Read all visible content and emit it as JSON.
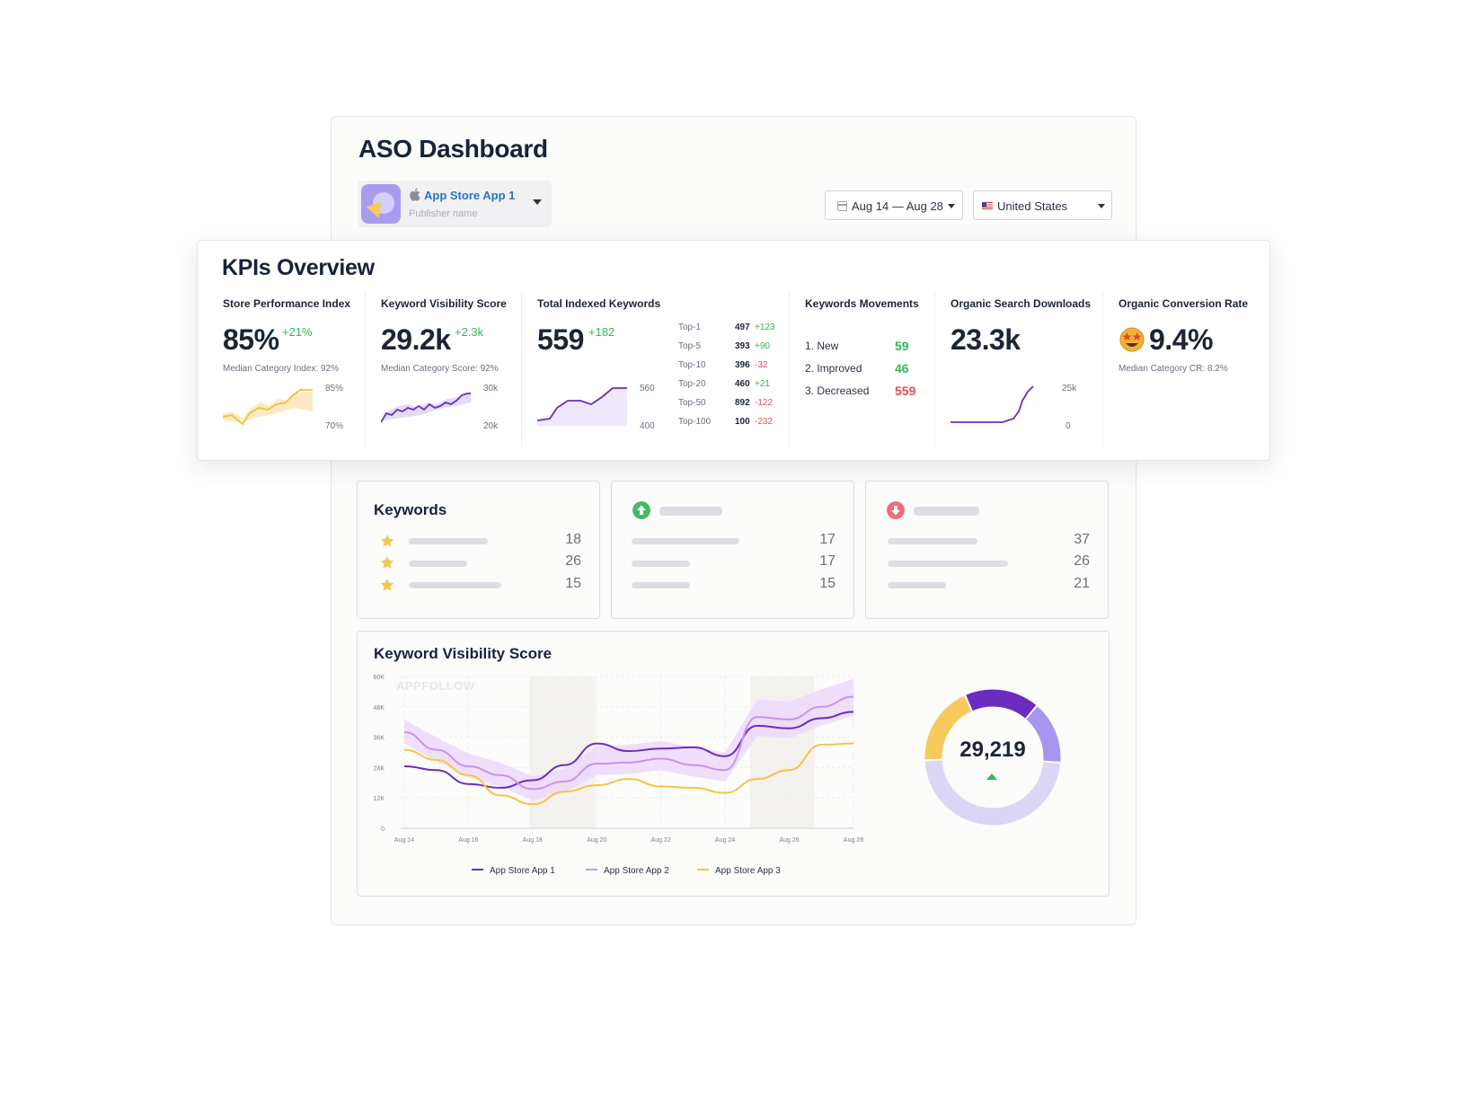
{
  "header": {
    "title": "ASO Dashboard",
    "app_name": "App Store App 1",
    "publisher": "Publisher name",
    "date_range": "Aug 14 — Aug 28",
    "country": "United States"
  },
  "kpis": {
    "title": "KPIs Overview",
    "store_performance": {
      "label": "Store Performance Index",
      "value": "85%",
      "delta": "+21%",
      "sub": "Median Category Index: 92%",
      "axis_top": "85%",
      "axis_bottom": "70%"
    },
    "keyword_visibility": {
      "label": "Keyword Visibility Score",
      "value": "29.2k",
      "delta": "+2.3k",
      "sub": "Median Category Score: 92%",
      "axis_top": "30k",
      "axis_bottom": "20k"
    },
    "indexed_keywords": {
      "label": "Total Indexed Keywords",
      "value": "559",
      "delta": "+182",
      "axis_top": "560",
      "axis_bottom": "400",
      "tiers": [
        {
          "name": "Top-1",
          "value": "497",
          "delta": "+123",
          "dir": "pos"
        },
        {
          "name": "Top-5",
          "value": "393",
          "delta": "+90",
          "dir": "pos"
        },
        {
          "name": "Top-10",
          "value": "396",
          "delta": "-32",
          "dir": "neg"
        },
        {
          "name": "Top-20",
          "value": "460",
          "delta": "+21",
          "dir": "pos"
        },
        {
          "name": "Top-50",
          "value": "892",
          "delta": "-122",
          "dir": "neg"
        },
        {
          "name": "Top-100",
          "value": "100",
          "delta": "-232",
          "dir": "neg"
        }
      ]
    },
    "movements": {
      "label": "Keywords Movements",
      "items": [
        {
          "label": "1.  New",
          "value": "59",
          "color": "#35b35a"
        },
        {
          "label": "2.  Improved",
          "value": "46",
          "color": "#35b35a"
        },
        {
          "label": "3.  Decreased",
          "value": "559",
          "color": "#e34c58"
        }
      ]
    },
    "organic_downloads": {
      "label": "Organic Search Downloads",
      "value": "23.3k",
      "axis_top": "25k",
      "axis_bottom": "0"
    },
    "conversion": {
      "label": "Organic Conversion Rate",
      "value": "9.4%",
      "sub": "Median Category CR: 8.2%",
      "icon": "star-struck-emoji-icon"
    }
  },
  "cards": {
    "keywords": {
      "title": "Keywords",
      "values": [
        "18",
        "26",
        "15"
      ]
    },
    "up": {
      "icon": "arrow-up-circle-icon",
      "values": [
        "17",
        "17",
        "15"
      ]
    },
    "down": {
      "icon": "arrow-down-circle-icon",
      "values": [
        "37",
        "26",
        "21"
      ]
    }
  },
  "visibility": {
    "title": "Keyword Visibility Score",
    "watermark": "APPFOLLOW",
    "total": "29,219",
    "y_ticks": [
      "60K",
      "48K",
      "36K",
      "24K",
      "12K",
      "0"
    ],
    "x_ticks": [
      "Aug 14",
      "Aug 16",
      "Aug 18",
      "Aug 20",
      "Aug 22",
      "Aug 24",
      "Aug 26",
      "Aug 28"
    ],
    "legend": [
      "App Store App 1",
      "App Store App 2",
      "App Store App 3"
    ]
  },
  "colors": {
    "purple": "#6a2cc1",
    "lilac": "#c793ef",
    "yellow": "#f6c443",
    "green": "#35b35a",
    "red": "#e34c58",
    "blue": "#2775c9"
  },
  "chart_data": {
    "type": "line",
    "ylim": [
      0,
      60000
    ],
    "x": [
      "Aug 14",
      "Aug 15",
      "Aug 16",
      "Aug 17",
      "Aug 18",
      "Aug 19",
      "Aug 20",
      "Aug 21",
      "Aug 22",
      "Aug 23",
      "Aug 24",
      "Aug 25",
      "Aug 26",
      "Aug 27",
      "Aug 28"
    ],
    "series": [
      {
        "name": "App Store App 1",
        "values": [
          24500,
          23000,
          17500,
          16000,
          19000,
          25000,
          33500,
          30500,
          31500,
          32000,
          28500,
          40500,
          39500,
          43500,
          46000
        ]
      },
      {
        "name": "App Store App 2",
        "values": [
          38000,
          31000,
          24500,
          21000,
          15500,
          18500,
          25500,
          26000,
          27500,
          25000,
          23000,
          44000,
          43000,
          48000,
          52000
        ]
      },
      {
        "name": "App Store App 3",
        "values": [
          31000,
          27000,
          21000,
          13000,
          9500,
          14500,
          17000,
          19500,
          16500,
          16000,
          14000,
          19500,
          23000,
          33000,
          33500
        ]
      }
    ],
    "donut": [
      {
        "name": "App Store App 1",
        "value": 0.18,
        "color": "#6a2cc1"
      },
      {
        "name": "App Store App 2",
        "value": 0.15,
        "color": "#a795ee"
      },
      {
        "name": "App Store App 3",
        "value": 0.19,
        "color": "#f6cb5c"
      },
      {
        "name": "other",
        "value": 0.48,
        "color": "#dcd5f6"
      }
    ]
  }
}
